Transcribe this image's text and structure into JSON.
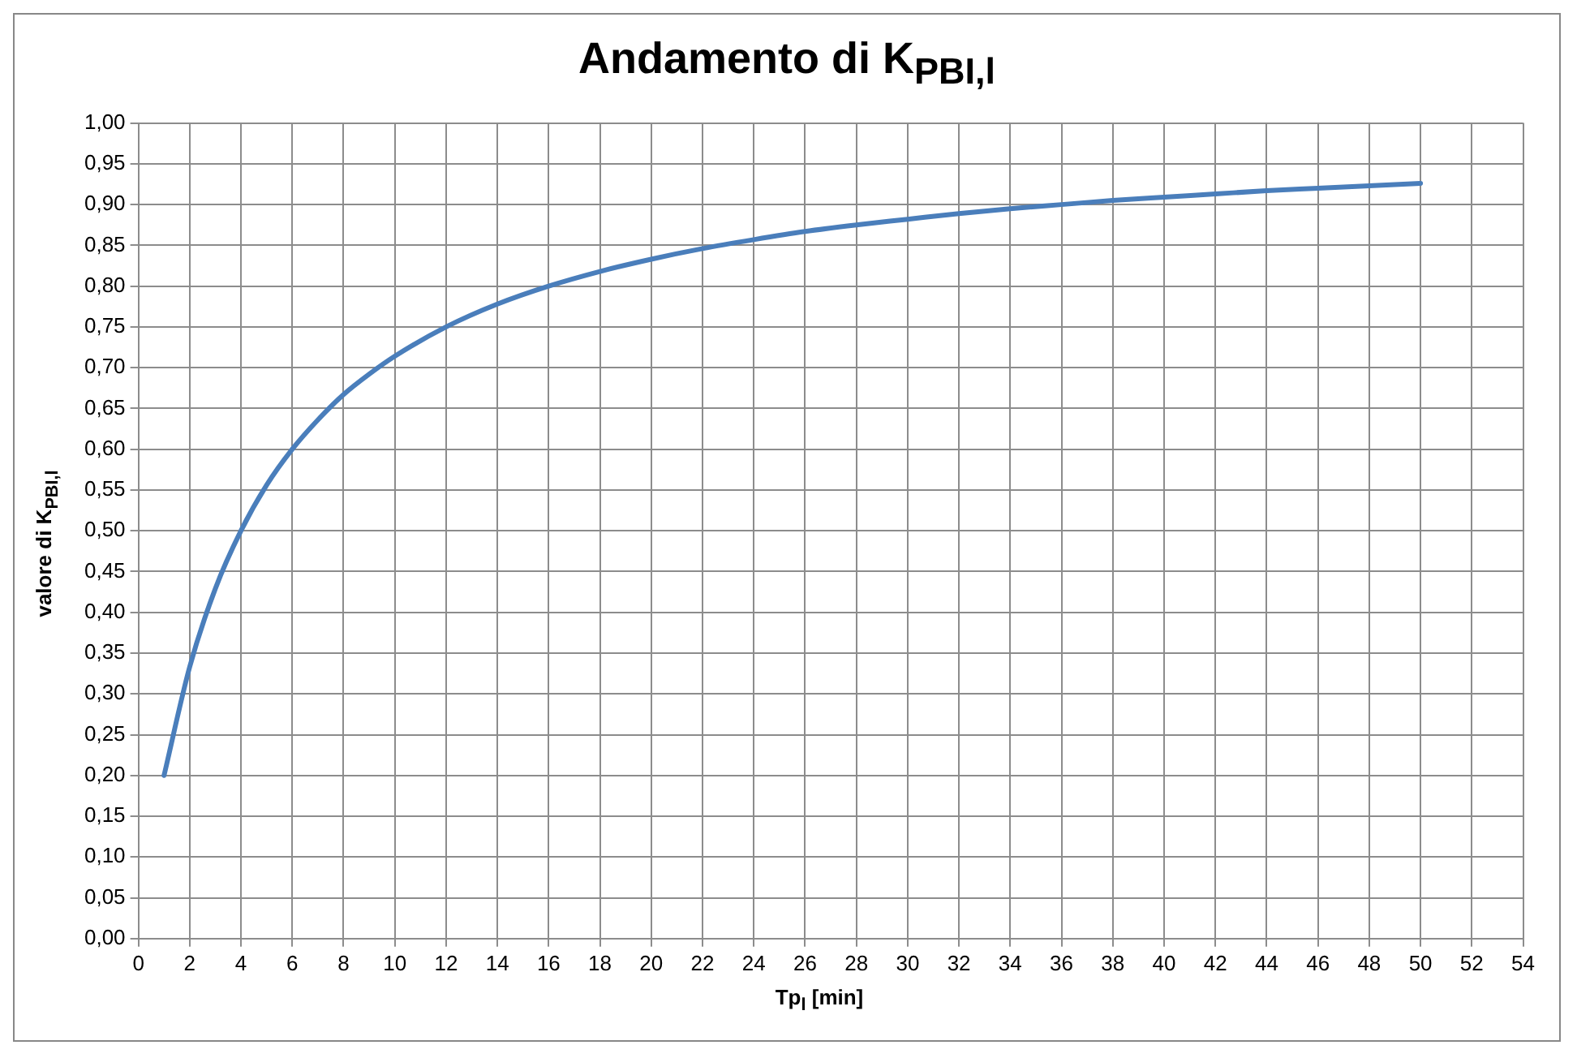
{
  "chart_data": {
    "type": "line",
    "title": "Andamento di K$_{PBI,l}$",
    "xlabel": "Tp$_{l}$ [min]",
    "ylabel": "valore di K$_{PBI,l}$",
    "x": [
      1,
      2,
      3,
      4,
      5,
      6,
      7,
      8,
      9,
      10,
      12,
      14,
      16,
      18,
      20,
      22,
      24,
      26,
      28,
      30,
      32,
      34,
      36,
      38,
      40,
      42,
      44,
      46,
      48,
      50
    ],
    "series": [
      {
        "color": "#4a7ebb",
        "values": [
          0.2,
          0.333,
          0.429,
          0.5,
          0.556,
          0.6,
          0.636,
          0.667,
          0.692,
          0.714,
          0.75,
          0.778,
          0.8,
          0.818,
          0.833,
          0.846,
          0.857,
          0.867,
          0.875,
          0.882,
          0.889,
          0.895,
          0.9,
          0.905,
          0.909,
          0.913,
          0.917,
          0.92,
          0.923,
          0.926
        ]
      }
    ],
    "xlim": [
      0,
      54
    ],
    "xticks": [
      0,
      2,
      4,
      6,
      8,
      10,
      12,
      14,
      16,
      18,
      20,
      22,
      24,
      26,
      28,
      30,
      32,
      34,
      36,
      38,
      40,
      42,
      44,
      46,
      48,
      50,
      52,
      54
    ],
    "ylim": [
      0,
      1
    ],
    "yticks": [
      {
        "value": 0,
        "label": "0,00"
      },
      {
        "value": 0.05,
        "label": "0,05"
      },
      {
        "value": 0.1,
        "label": "0,10"
      },
      {
        "value": 0.15,
        "label": "0,15"
      },
      {
        "value": 0.2,
        "label": "0,20"
      },
      {
        "value": 0.25,
        "label": "0,25"
      },
      {
        "value": 0.3,
        "label": "0,30"
      },
      {
        "value": 0.35,
        "label": "0,35"
      },
      {
        "value": 0.4,
        "label": "0,40"
      },
      {
        "value": 0.45,
        "label": "0,45"
      },
      {
        "value": 0.5,
        "label": "0,50"
      },
      {
        "value": 0.55,
        "label": "0,55"
      },
      {
        "value": 0.6,
        "label": "0,60"
      },
      {
        "value": 0.65,
        "label": "0,65"
      },
      {
        "value": 0.7,
        "label": "0,70"
      },
      {
        "value": 0.75,
        "label": "0,75"
      },
      {
        "value": 0.8,
        "label": "0,80"
      },
      {
        "value": 0.85,
        "label": "0,85"
      },
      {
        "value": 0.9,
        "label": "0,90"
      },
      {
        "value": 0.95,
        "label": "0,95"
      },
      {
        "value": 1,
        "label": "1,00"
      }
    ],
    "grid": true,
    "legend": false,
    "marker": "none",
    "line_style": "solid"
  }
}
